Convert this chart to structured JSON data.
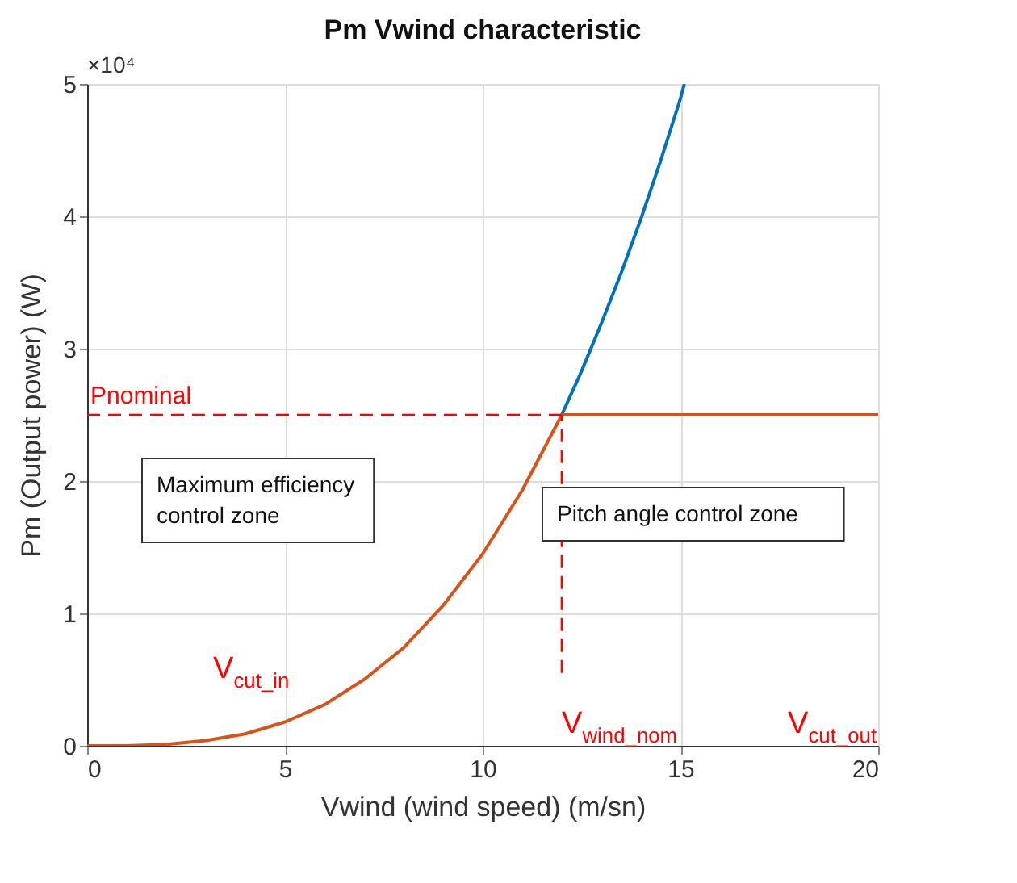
{
  "chart_data": {
    "type": "line",
    "title": "Pm Vwind characteristic",
    "xlabel": "Vwind (wind speed) (m/sn)",
    "ylabel": "Pm (Output power) (W)",
    "xlim": [
      0,
      20
    ],
    "xticks": [
      0,
      5,
      10,
      15,
      20
    ],
    "ylim": [
      0,
      5
    ],
    "yticks": [
      0,
      1,
      2,
      3,
      4,
      5
    ],
    "grid": true,
    "line_style": "solid",
    "marker": "none",
    "series": [
      {
        "color": "#0072bd",
        "x": [
          12,
          12.5,
          13,
          13.5,
          14,
          14.5,
          15,
          15.1
        ],
        "values": [
          2.5,
          2.83,
          3.19,
          3.57,
          3.98,
          4.42,
          4.89,
          5.0
        ]
      },
      {
        "color": "#d95319",
        "x": [
          0,
          1,
          2,
          3,
          4,
          5,
          6,
          7,
          8,
          9,
          10,
          11,
          12,
          20
        ],
        "values": [
          0,
          0,
          0.01,
          0.04,
          0.09,
          0.18,
          0.31,
          0.5,
          0.74,
          1.06,
          1.45,
          1.93,
          2.5,
          2.5
        ]
      }
    ],
    "ref_lines": [
      {
        "axis": "y",
        "value": 2.5,
        "label": "Pnominal",
        "color": "#ff0000",
        "line_style": "dashed"
      },
      {
        "axis": "x",
        "value": 12,
        "label": "V$_{wind_nom}$",
        "color": "#ff0000",
        "line_style": "dashed"
      }
    ],
    "annotations": [
      "×10⁴",
      "Maximum efficiency\n control zone",
      "Pitch angle control zone",
      "V$_{cut_in}$",
      "V$_{cut_out}$"
    ]
  }
}
